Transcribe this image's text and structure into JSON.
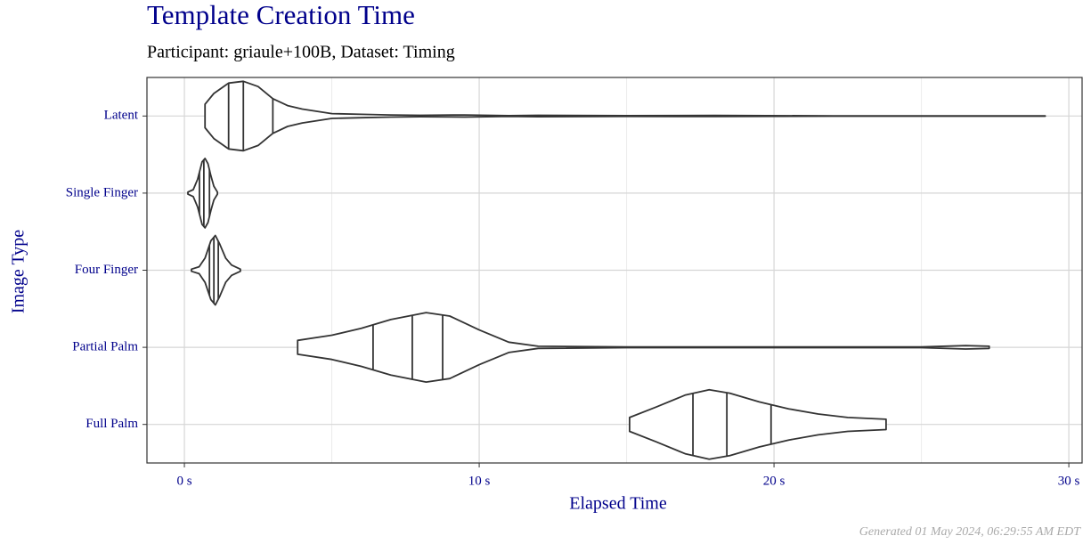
{
  "chart_data": {
    "type": "violin",
    "title": "Template Creation Time",
    "subtitle": "Participant: griaule+100B, Dataset: Timing",
    "x_label": "Elapsed Time",
    "y_label": "Image Type",
    "footnote": "Generated 01 May 2024, 06:29:55 AM EDT",
    "categories": [
      "Latent",
      "Single Finger",
      "Four Finger",
      "Partial Palm",
      "Full Palm"
    ],
    "xlim": [
      -1.27,
      30.45
    ],
    "xticks": [
      {
        "value": 0,
        "label": "0 s"
      },
      {
        "value": 10,
        "label": "10 s"
      },
      {
        "value": 20,
        "label": "20 s"
      },
      {
        "value": 30,
        "label": "30 s"
      }
    ],
    "minor_xticks": [
      5,
      15,
      25
    ],
    "grid": true,
    "color": "#333333",
    "violins": [
      {
        "x": [
          0.7,
          1.0,
          1.5,
          2.0,
          2.5,
          3.0,
          3.5,
          4.0,
          5.0,
          6.0,
          7.0,
          8.0,
          9.5,
          11.0,
          12.0,
          15.0,
          18.0,
          22.0,
          29.2
        ],
        "density": [
          0.34,
          0.65,
          0.95,
          1.0,
          0.85,
          0.5,
          0.3,
          0.2,
          0.07,
          0.05,
          0.03,
          0.02,
          0.03,
          0.01,
          0.02,
          0.01,
          0.015,
          0.005,
          0.005
        ],
        "quartiles": [
          1.5,
          2.0,
          3.0
        ]
      },
      {
        "x": [
          0.12,
          0.3,
          0.45,
          0.6,
          0.7,
          0.8,
          0.9,
          1.0,
          1.12
        ],
        "density": [
          0.03,
          0.1,
          0.4,
          0.9,
          1.0,
          0.85,
          0.5,
          0.2,
          0.03
        ],
        "quartiles": [
          0.51,
          0.66,
          0.85
        ]
      },
      {
        "x": [
          0.24,
          0.5,
          0.7,
          0.9,
          1.05,
          1.2,
          1.4,
          1.6,
          1.9
        ],
        "density": [
          0.03,
          0.1,
          0.35,
          0.85,
          1.0,
          0.75,
          0.35,
          0.15,
          0.03
        ],
        "quartiles": [
          0.85,
          1.0,
          1.15
        ]
      },
      {
        "x": [
          3.84,
          5.0,
          6.0,
          7.0,
          8.2,
          9.0,
          10.0,
          11.0,
          12.0,
          15.0,
          25.0,
          26.5,
          27.3
        ],
        "density": [
          0.2,
          0.35,
          0.55,
          0.8,
          1.0,
          0.9,
          0.5,
          0.15,
          0.03,
          0.01,
          0.01,
          0.05,
          0.03
        ],
        "quartiles": [
          6.4,
          7.73,
          8.76
        ]
      },
      {
        "x": [
          15.1,
          16.0,
          17.0,
          17.8,
          18.5,
          19.5,
          20.5,
          21.5,
          22.5,
          23.8
        ],
        "density": [
          0.2,
          0.5,
          0.85,
          1.0,
          0.9,
          0.65,
          0.45,
          0.3,
          0.2,
          0.15
        ],
        "quartiles": [
          17.25,
          18.4,
          19.9
        ]
      }
    ]
  }
}
